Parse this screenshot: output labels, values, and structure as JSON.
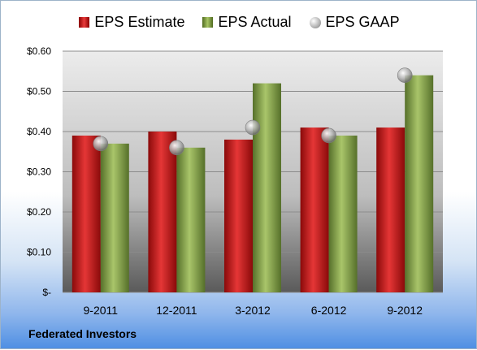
{
  "legend": {
    "estimate": "EPS Estimate",
    "actual": "EPS Actual",
    "gaap": "EPS GAAP"
  },
  "footer": {
    "company": "Federated Investors"
  },
  "colors": {
    "estimate": "#cc1f1f",
    "actual": "#8fae4a",
    "gaap": "#b0b0b0"
  },
  "chart_data": {
    "type": "bar",
    "categories": [
      "9-2011",
      "12-2011",
      "3-2012",
      "6-2012",
      "9-2012"
    ],
    "series": [
      {
        "name": "EPS Estimate",
        "values": [
          0.39,
          0.4,
          0.38,
          0.41,
          0.41
        ]
      },
      {
        "name": "EPS Actual",
        "values": [
          0.37,
          0.36,
          0.52,
          0.39,
          0.54
        ]
      },
      {
        "name": "EPS GAAP",
        "values": [
          0.37,
          0.36,
          0.41,
          0.39,
          0.54
        ]
      }
    ],
    "y_ticks": [
      "$-",
      "$0.10",
      "$0.20",
      "$0.30",
      "$0.40",
      "$0.50",
      "$0.60"
    ],
    "ylim": [
      0,
      0.6
    ],
    "grid": true,
    "legend_position": "top"
  }
}
